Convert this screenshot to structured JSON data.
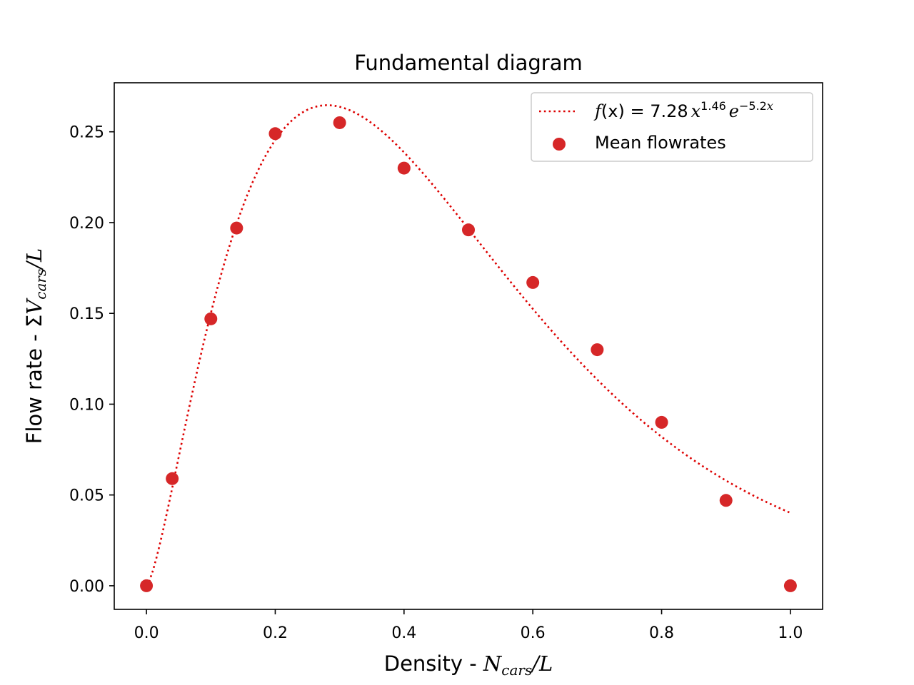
{
  "chart_data": {
    "type": "scatter",
    "title": "Fundamental diagram",
    "xlabel": {
      "prefix": "Density - ",
      "var": "N",
      "sub": "cars",
      "suffix": "/L"
    },
    "ylabel": {
      "prefix": "Flow rate - ",
      "sym": "Σ",
      "var": "V",
      "sub": "cars",
      "suffix": "/L"
    },
    "xlim": [
      -0.05,
      1.05
    ],
    "ylim": [
      -0.013,
      0.277
    ],
    "xticks": [
      0.0,
      0.2,
      0.4,
      0.6,
      0.8,
      1.0
    ],
    "xtick_labels": [
      "0.0",
      "0.2",
      "0.4",
      "0.6",
      "0.8",
      "1.0"
    ],
    "yticks": [
      0.0,
      0.05,
      0.1,
      0.15,
      0.2,
      0.25
    ],
    "ytick_labels": [
      "0.00",
      "0.05",
      "0.10",
      "0.15",
      "0.20",
      "0.25"
    ],
    "grid": false,
    "legend_position": "top-right",
    "series": [
      {
        "name": "Mean flowrates",
        "kind": "scatter",
        "color": "#d62728",
        "x": [
          0.0,
          0.04,
          0.1,
          0.14,
          0.2,
          0.3,
          0.4,
          0.5,
          0.6,
          0.7,
          0.8,
          0.9,
          1.0
        ],
        "y": [
          0.0,
          0.059,
          0.147,
          0.197,
          0.249,
          0.255,
          0.23,
          0.196,
          0.167,
          0.13,
          0.09,
          0.047,
          0.0
        ]
      },
      {
        "name": "f(x) = 7.28 x^1.46 e^-5.2x",
        "kind": "fit-line",
        "style": "dotted",
        "color": "#dd0000",
        "coefficient": 7.28,
        "exponent": 1.46,
        "decay": 5.2,
        "x_range": [
          0.0,
          1.0
        ]
      }
    ],
    "legend": {
      "fit_label": {
        "f": "f",
        "x_arg": "(x) = 7.28",
        "x": "x",
        "exp1": "1.46",
        "e": "e",
        "exp2": "−5.2",
        "exp2_var": "x"
      },
      "scatter_label": "Mean flowrates"
    }
  }
}
